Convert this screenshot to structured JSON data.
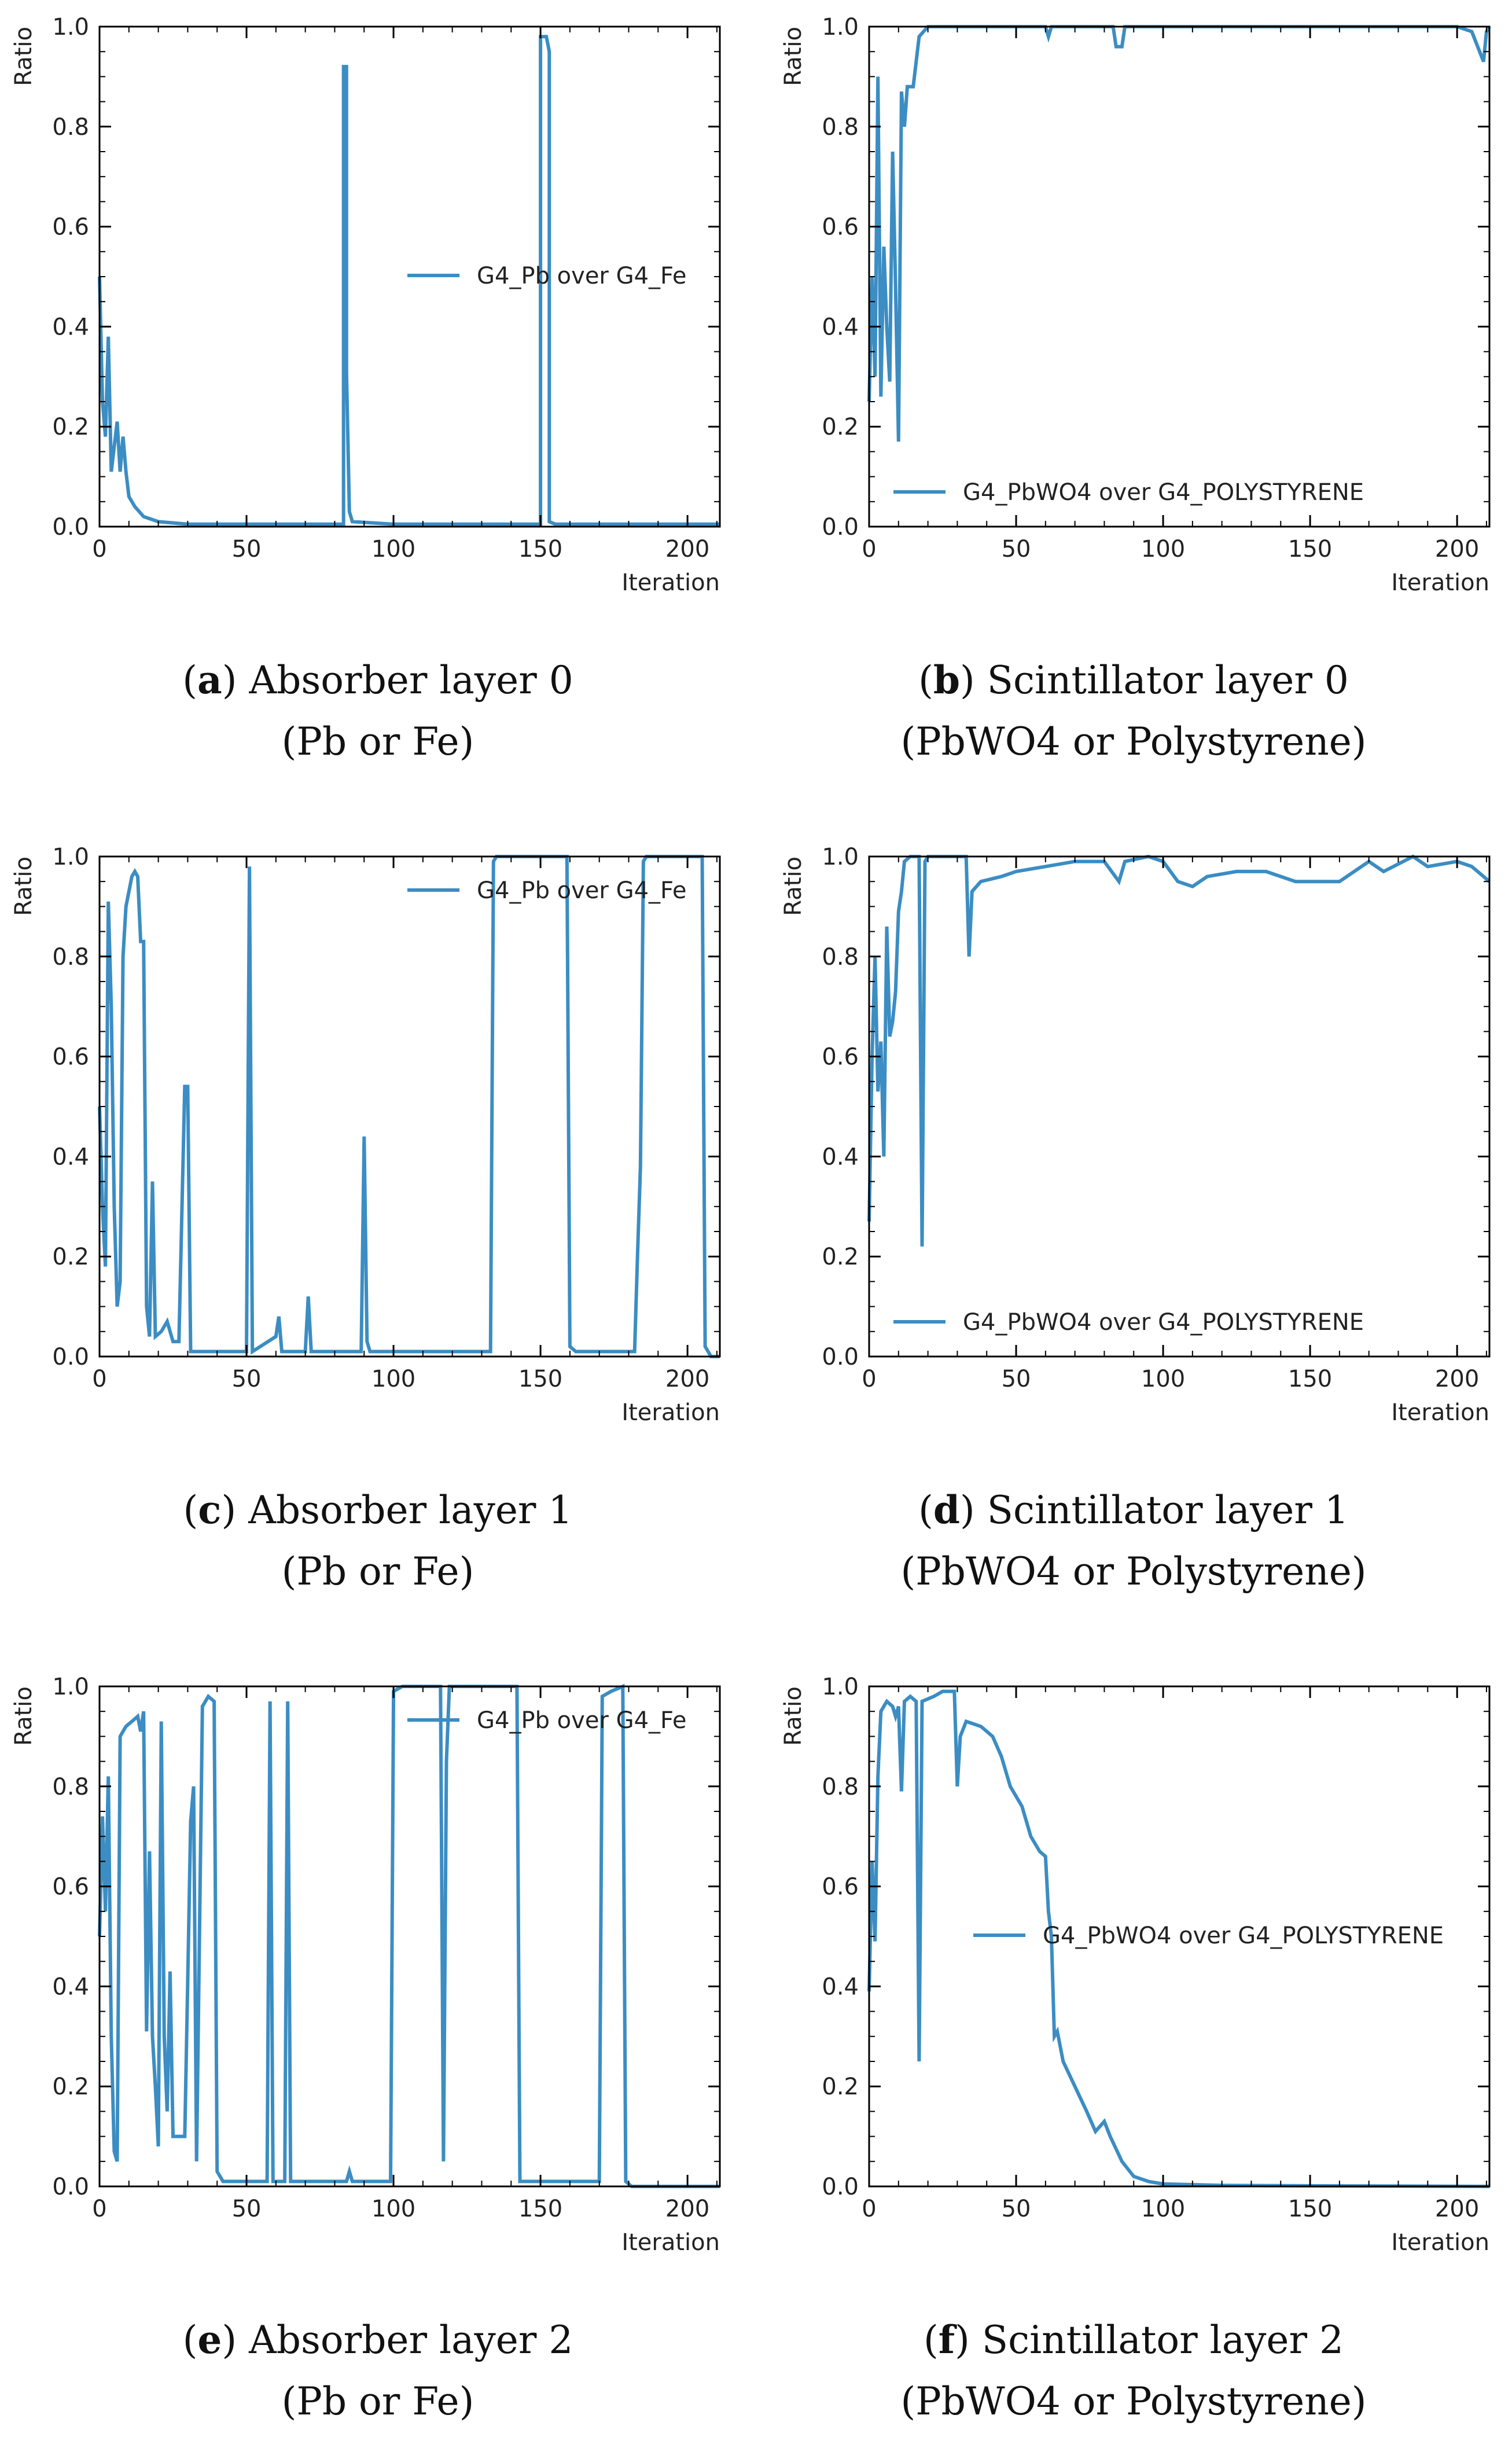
{
  "figure": {
    "line_color": "#3b8dc3",
    "xlabel": "Iteration",
    "ylabel": "Ratio"
  },
  "chart_data": [
    {
      "type": "line",
      "id": "a",
      "xlabel": "Iteration",
      "ylabel": "Ratio",
      "xlim": [
        0,
        211
      ],
      "ylim": [
        0,
        1
      ],
      "xticks": [
        "0",
        "50",
        "100",
        "150",
        "200"
      ],
      "yticks": [
        "0.0",
        "0.2",
        "0.4",
        "0.6",
        "0.8",
        "1.0"
      ],
      "legend": {
        "label": "G4_Pb over G4_Fe",
        "placement": "center-right"
      },
      "points": [
        [
          0,
          0.5
        ],
        [
          1,
          0.25
        ],
        [
          2,
          0.18
        ],
        [
          3,
          0.38
        ],
        [
          4,
          0.11
        ],
        [
          6,
          0.21
        ],
        [
          7,
          0.11
        ],
        [
          8,
          0.18
        ],
        [
          9,
          0.11
        ],
        [
          10,
          0.06
        ],
        [
          12,
          0.04
        ],
        [
          15,
          0.02
        ],
        [
          20,
          0.01
        ],
        [
          30,
          0.005
        ],
        [
          83,
          0.005
        ],
        [
          83,
          0.92
        ],
        [
          84,
          0.92
        ],
        [
          84,
          0.31
        ],
        [
          85,
          0.03
        ],
        [
          86,
          0.01
        ],
        [
          100,
          0.005
        ],
        [
          150,
          0.005
        ],
        [
          150,
          0.98
        ],
        [
          152,
          0.98
        ],
        [
          153,
          0.95
        ],
        [
          153,
          0.01
        ],
        [
          155,
          0.005
        ],
        [
          211,
          0.005
        ]
      ],
      "caption": {
        "letter": "a",
        "title": " Absorber layer 0",
        "subtitle": "(Pb or Fe)"
      }
    },
    {
      "type": "line",
      "id": "b",
      "xlabel": "Iteration",
      "ylabel": "Ratio",
      "xlim": [
        0,
        211
      ],
      "ylim": [
        0,
        1
      ],
      "xticks": [
        "0",
        "50",
        "100",
        "150",
        "200"
      ],
      "yticks": [
        "0.0",
        "0.2",
        "0.4",
        "0.6",
        "0.8",
        "1.0"
      ],
      "legend": {
        "label": "G4_PbWO4 over G4_POLYSTYRENE",
        "placement": "lower-center"
      },
      "points": [
        [
          0,
          0.25
        ],
        [
          1,
          0.5
        ],
        [
          2,
          0.3
        ],
        [
          3,
          0.9
        ],
        [
          4,
          0.26
        ],
        [
          5,
          0.56
        ],
        [
          6,
          0.4
        ],
        [
          7,
          0.29
        ],
        [
          8,
          0.75
        ],
        [
          9,
          0.48
        ],
        [
          10,
          0.17
        ],
        [
          11,
          0.87
        ],
        [
          12,
          0.8
        ],
        [
          13,
          0.88
        ],
        [
          15,
          0.88
        ],
        [
          17,
          0.98
        ],
        [
          20,
          1.0
        ],
        [
          60,
          1.0
        ],
        [
          61,
          0.98
        ],
        [
          62,
          1.0
        ],
        [
          83,
          1.0
        ],
        [
          84,
          0.96
        ],
        [
          86,
          0.96
        ],
        [
          87,
          1.0
        ],
        [
          200,
          1.0
        ],
        [
          205,
          0.99
        ],
        [
          207,
          0.96
        ],
        [
          209,
          0.93
        ],
        [
          210,
          0.99
        ],
        [
          211,
          1.0
        ]
      ],
      "caption": {
        "letter": "b",
        "title": " Scintillator layer 0",
        "subtitle": "(PbWO4 or Polystyrene)"
      }
    },
    {
      "type": "line",
      "id": "c",
      "xlabel": "Iteration",
      "ylabel": "Ratio",
      "xlim": [
        0,
        211
      ],
      "ylim": [
        0,
        1
      ],
      "xticks": [
        "0",
        "50",
        "100",
        "150",
        "200"
      ],
      "yticks": [
        "0.0",
        "0.2",
        "0.4",
        "0.6",
        "0.8",
        "1.0"
      ],
      "legend": {
        "label": "G4_Pb over G4_Fe",
        "placement": "upper-right"
      },
      "points": [
        [
          0,
          0.5
        ],
        [
          1,
          0.3
        ],
        [
          2,
          0.18
        ],
        [
          3,
          0.91
        ],
        [
          4,
          0.7
        ],
        [
          5,
          0.3
        ],
        [
          6,
          0.1
        ],
        [
          7,
          0.15
        ],
        [
          8,
          0.8
        ],
        [
          9,
          0.9
        ],
        [
          11,
          0.96
        ],
        [
          12,
          0.97
        ],
        [
          13,
          0.96
        ],
        [
          14,
          0.83
        ],
        [
          15,
          0.83
        ],
        [
          16,
          0.1
        ],
        [
          17,
          0.04
        ],
        [
          18,
          0.35
        ],
        [
          19,
          0.04
        ],
        [
          21,
          0.05
        ],
        [
          23,
          0.07
        ],
        [
          25,
          0.03
        ],
        [
          27,
          0.03
        ],
        [
          29,
          0.54
        ],
        [
          30,
          0.54
        ],
        [
          31,
          0.01
        ],
        [
          50,
          0.01
        ],
        [
          51,
          0.98
        ],
        [
          52,
          0.01
        ],
        [
          60,
          0.04
        ],
        [
          61,
          0.08
        ],
        [
          62,
          0.01
        ],
        [
          70,
          0.01
        ],
        [
          71,
          0.12
        ],
        [
          72,
          0.01
        ],
        [
          89,
          0.01
        ],
        [
          90,
          0.44
        ],
        [
          91,
          0.03
        ],
        [
          92,
          0.01
        ],
        [
          133,
          0.01
        ],
        [
          134,
          0.99
        ],
        [
          135,
          1.0
        ],
        [
          159,
          1.0
        ],
        [
          160,
          0.02
        ],
        [
          162,
          0.01
        ],
        [
          182,
          0.01
        ],
        [
          183,
          0.2
        ],
        [
          184,
          0.38
        ],
        [
          185,
          0.99
        ],
        [
          186,
          1.0
        ],
        [
          205,
          1.0
        ],
        [
          206,
          0.02
        ],
        [
          208,
          0.0
        ],
        [
          211,
          0.0
        ]
      ],
      "caption": {
        "letter": "c",
        "title": " Absorber layer 1",
        "subtitle": "(Pb or Fe)"
      }
    },
    {
      "type": "line",
      "id": "d",
      "xlabel": "Iteration",
      "ylabel": "Ratio",
      "xlim": [
        0,
        211
      ],
      "ylim": [
        0,
        1
      ],
      "xticks": [
        "0",
        "50",
        "100",
        "150",
        "200"
      ],
      "yticks": [
        "0.0",
        "0.2",
        "0.4",
        "0.6",
        "0.8",
        "1.0"
      ],
      "legend": {
        "label": "G4_PbWO4 over G4_POLYSTYRENE",
        "placement": "lower-center"
      },
      "points": [
        [
          0,
          0.27
        ],
        [
          1,
          0.6
        ],
        [
          2,
          0.8
        ],
        [
          3,
          0.53
        ],
        [
          4,
          0.63
        ],
        [
          5,
          0.4
        ],
        [
          6,
          0.86
        ],
        [
          7,
          0.64
        ],
        [
          8,
          0.67
        ],
        [
          9,
          0.73
        ],
        [
          10,
          0.89
        ],
        [
          11,
          0.93
        ],
        [
          12,
          0.99
        ],
        [
          14,
          1.0
        ],
        [
          17,
          1.0
        ],
        [
          18,
          0.22
        ],
        [
          19,
          0.99
        ],
        [
          20,
          1.0
        ],
        [
          33,
          1.0
        ],
        [
          34,
          0.8
        ],
        [
          35,
          0.93
        ],
        [
          38,
          0.95
        ],
        [
          45,
          0.96
        ],
        [
          50,
          0.97
        ],
        [
          60,
          0.98
        ],
        [
          70,
          0.99
        ],
        [
          80,
          0.99
        ],
        [
          85,
          0.95
        ],
        [
          87,
          0.99
        ],
        [
          95,
          1.0
        ],
        [
          100,
          0.99
        ],
        [
          105,
          0.95
        ],
        [
          110,
          0.94
        ],
        [
          115,
          0.96
        ],
        [
          125,
          0.97
        ],
        [
          135,
          0.97
        ],
        [
          145,
          0.95
        ],
        [
          160,
          0.95
        ],
        [
          165,
          0.97
        ],
        [
          170,
          0.99
        ],
        [
          175,
          0.97
        ],
        [
          185,
          1.0
        ],
        [
          190,
          0.98
        ],
        [
          200,
          0.99
        ],
        [
          205,
          0.98
        ],
        [
          211,
          0.95
        ]
      ],
      "caption": {
        "letter": "d",
        "title": " Scintillator layer 1",
        "subtitle": "(PbWO4 or Polystyrene)"
      }
    },
    {
      "type": "line",
      "id": "e",
      "xlabel": "Iteration",
      "ylabel": "Ratio",
      "xlim": [
        0,
        211
      ],
      "ylim": [
        0,
        1
      ],
      "xticks": [
        "0",
        "50",
        "100",
        "150",
        "200"
      ],
      "yticks": [
        "0.0",
        "0.2",
        "0.4",
        "0.6",
        "0.8",
        "1.0"
      ],
      "legend": {
        "label": "G4_Pb over G4_Fe",
        "placement": "upper-right"
      },
      "points": [
        [
          0,
          0.5
        ],
        [
          1,
          0.74
        ],
        [
          2,
          0.55
        ],
        [
          3,
          0.82
        ],
        [
          4,
          0.3
        ],
        [
          5,
          0.07
        ],
        [
          6,
          0.05
        ],
        [
          7,
          0.9
        ],
        [
          9,
          0.92
        ],
        [
          11,
          0.93
        ],
        [
          13,
          0.94
        ],
        [
          14,
          0.91
        ],
        [
          15,
          0.95
        ],
        [
          16,
          0.31
        ],
        [
          17,
          0.67
        ],
        [
          18,
          0.3
        ],
        [
          19,
          0.2
        ],
        [
          20,
          0.08
        ],
        [
          21,
          0.93
        ],
        [
          22,
          0.3
        ],
        [
          23,
          0.15
        ],
        [
          24,
          0.43
        ],
        [
          25,
          0.1
        ],
        [
          29,
          0.1
        ],
        [
          30,
          0.41
        ],
        [
          31,
          0.73
        ],
        [
          32,
          0.8
        ],
        [
          33,
          0.05
        ],
        [
          35,
          0.96
        ],
        [
          37,
          0.98
        ],
        [
          39,
          0.97
        ],
        [
          40,
          0.03
        ],
        [
          42,
          0.01
        ],
        [
          57,
          0.01
        ],
        [
          58,
          0.97
        ],
        [
          59,
          0.01
        ],
        [
          63,
          0.01
        ],
        [
          64,
          0.97
        ],
        [
          65,
          0.01
        ],
        [
          84,
          0.01
        ],
        [
          85,
          0.03
        ],
        [
          86,
          0.01
        ],
        [
          99,
          0.01
        ],
        [
          100,
          0.99
        ],
        [
          103,
          1.0
        ],
        [
          116,
          1.0
        ],
        [
          117,
          0.05
        ],
        [
          118,
          0.85
        ],
        [
          119,
          1.0
        ],
        [
          142,
          1.0
        ],
        [
          143,
          0.01
        ],
        [
          170,
          0.01
        ],
        [
          171,
          0.98
        ],
        [
          174,
          0.99
        ],
        [
          178,
          1.0
        ],
        [
          179,
          0.01
        ],
        [
          181,
          0.0
        ],
        [
          211,
          0.0
        ]
      ],
      "caption": {
        "letter": "e",
        "title": " Absorber layer 2",
        "subtitle": "(Pb or Fe)"
      }
    },
    {
      "type": "line",
      "id": "f",
      "xlabel": "Iteration",
      "ylabel": "Ratio",
      "xlim": [
        0,
        211
      ],
      "ylim": [
        0,
        1
      ],
      "xticks": [
        "0",
        "50",
        "100",
        "150",
        "200"
      ],
      "yticks": [
        "0.0",
        "0.2",
        "0.4",
        "0.6",
        "0.8",
        "1.0"
      ],
      "legend": {
        "label": "G4_PbWO4 over G4_POLYSTYRENE",
        "placement": "center-right"
      },
      "points": [
        [
          0,
          0.39
        ],
        [
          1,
          0.65
        ],
        [
          2,
          0.49
        ],
        [
          3,
          0.82
        ],
        [
          4,
          0.95
        ],
        [
          6,
          0.97
        ],
        [
          8,
          0.96
        ],
        [
          9,
          0.94
        ],
        [
          10,
          0.96
        ],
        [
          11,
          0.79
        ],
        [
          12,
          0.97
        ],
        [
          14,
          0.98
        ],
        [
          16,
          0.97
        ],
        [
          17,
          0.25
        ],
        [
          18,
          0.97
        ],
        [
          22,
          0.98
        ],
        [
          25,
          0.99
        ],
        [
          29,
          0.99
        ],
        [
          30,
          0.8
        ],
        [
          31,
          0.9
        ],
        [
          33,
          0.93
        ],
        [
          38,
          0.92
        ],
        [
          42,
          0.9
        ],
        [
          45,
          0.86
        ],
        [
          48,
          0.8
        ],
        [
          52,
          0.76
        ],
        [
          55,
          0.7
        ],
        [
          58,
          0.67
        ],
        [
          60,
          0.66
        ],
        [
          61,
          0.55
        ],
        [
          62,
          0.5
        ],
        [
          63,
          0.3
        ],
        [
          64,
          0.31
        ],
        [
          66,
          0.25
        ],
        [
          70,
          0.2
        ],
        [
          74,
          0.15
        ],
        [
          77,
          0.11
        ],
        [
          80,
          0.13
        ],
        [
          82,
          0.1
        ],
        [
          86,
          0.05
        ],
        [
          90,
          0.02
        ],
        [
          95,
          0.01
        ],
        [
          100,
          0.005
        ],
        [
          120,
          0.002
        ],
        [
          211,
          0.0
        ]
      ],
      "caption": {
        "letter": "f",
        "title": " Scintillator layer 2",
        "subtitle": "(PbWO4 or Polystyrene)"
      }
    }
  ]
}
